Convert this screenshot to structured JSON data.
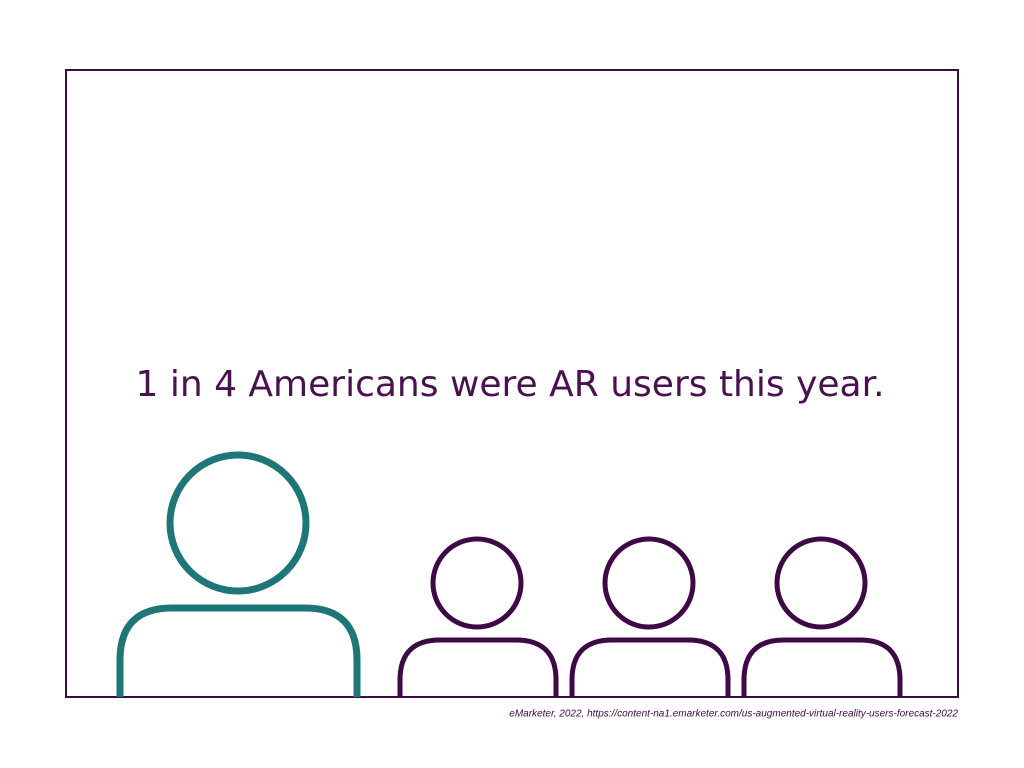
{
  "headline": "1 in 4 Americans were AR users this year.",
  "source": "eMarketer, 2022, https://content-na1.emarketer.com/us-augmented-virtual-reality-users-forecast-2022"
}
